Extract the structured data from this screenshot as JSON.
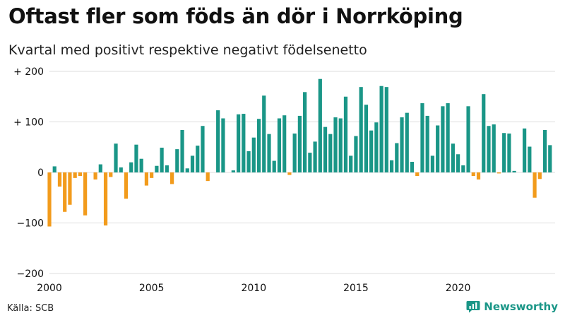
{
  "title": "Oftast fler som föds än dör i Norrköping",
  "subtitle": "Kvartal med positivt respektive negativt födelsenetto",
  "source": "Källa: SCB",
  "brand": {
    "name": "Newsworthy",
    "icon": "bar-chart-speech-icon"
  },
  "colors": {
    "positive": "#1a9687",
    "negative": "#f29b1c",
    "grid": "#dddddd",
    "text": "#111111"
  },
  "chart_data": {
    "type": "bar",
    "title": "Oftast fler som föds än dör i Norrköping",
    "subtitle": "Kvartal med positivt respektive negativt födelsenetto",
    "xlabel": "",
    "ylabel": "",
    "ylim": [
      -200,
      200
    ],
    "y_ticks": [
      200,
      100,
      0,
      -100,
      -200
    ],
    "y_tick_labels": [
      "+ 200",
      "+ 100",
      "0",
      "−100",
      "−200"
    ],
    "x_ticks": [
      2000,
      2005,
      2010,
      2015,
      2020
    ],
    "x_tick_labels": [
      "2000",
      "2005",
      "2010",
      "2015",
      "2020"
    ],
    "x_range": [
      2000,
      2024.75
    ],
    "x_start": 2000,
    "period": "quarter",
    "grid": true,
    "legend": "none",
    "series": [
      {
        "name": "Födelsenetto",
        "values": [
          -107,
          12,
          -28,
          -78,
          -64,
          -11,
          -7,
          -85,
          0,
          -14,
          16,
          -105,
          -9,
          57,
          10,
          -52,
          20,
          55,
          27,
          -26,
          -11,
          13,
          49,
          14,
          -23,
          46,
          84,
          8,
          33,
          53,
          92,
          -17,
          0,
          123,
          107,
          0,
          4,
          115,
          116,
          42,
          69,
          106,
          152,
          76,
          23,
          107,
          113,
          -5,
          77,
          112,
          159,
          39,
          61,
          185,
          90,
          76,
          109,
          107,
          150,
          33,
          72,
          169,
          134,
          83,
          99,
          171,
          169,
          24,
          58,
          109,
          118,
          21,
          -7,
          137,
          112,
          33,
          93,
          131,
          137,
          57,
          36,
          14,
          131,
          -7,
          -14,
          155,
          92,
          95,
          -2,
          78,
          77,
          3,
          0,
          87,
          51,
          -50,
          -13,
          84,
          54
        ]
      }
    ]
  }
}
